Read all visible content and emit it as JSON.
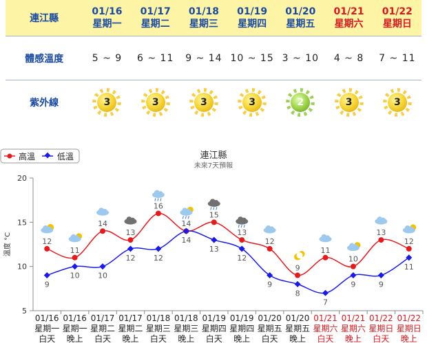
{
  "location_label": "連江縣",
  "feel_label": "體感溫度",
  "uv_label": "紫外線",
  "days": [
    {
      "date": "01/16",
      "weekday": "星期一",
      "feel": "5 ~ 9",
      "uv": "3",
      "weekend": false
    },
    {
      "date": "01/17",
      "weekday": "星期二",
      "feel": "6 ~ 11",
      "uv": "3",
      "weekend": false
    },
    {
      "date": "01/18",
      "weekday": "星期三",
      "feel": "9 ~ 14",
      "uv": "3",
      "weekend": false
    },
    {
      "date": "01/19",
      "weekday": "星期四",
      "feel": "10 ~ 15",
      "uv": "3",
      "weekend": false
    },
    {
      "date": "01/20",
      "weekday": "星期五",
      "feel": "3 ~ 10",
      "uv": "2",
      "weekend": false
    },
    {
      "date": "01/21",
      "weekday": "星期六",
      "feel": "4 ~ 8",
      "uv": "3",
      "weekend": true
    },
    {
      "date": "01/22",
      "weekday": "星期日",
      "feel": "7 ~ 11",
      "uv": "3",
      "weekend": true
    }
  ],
  "colors": {
    "high": "#e41a1c",
    "low": "#1a1ae6",
    "weekend": "#d8181e",
    "header_bg": "#fdf4a6"
  },
  "chart_data": {
    "type": "line",
    "title": "連江縣",
    "subtitle": "未來7天預報",
    "ylabel": "溫度 °C",
    "ylim": [
      5,
      20
    ],
    "yticks": [
      5,
      10,
      15,
      20
    ],
    "legend": "top-left",
    "grid": false,
    "categories": [
      {
        "date": "01/16",
        "weekday": "星期一",
        "period": "白天",
        "weekend": false,
        "icon": "cloudy-sun-icon"
      },
      {
        "date": "01/16",
        "weekday": "星期一",
        "period": "晚上",
        "weekend": false,
        "icon": "cloudy-moon-icon"
      },
      {
        "date": "01/17",
        "weekday": "星期二",
        "period": "白天",
        "weekend": false,
        "icon": "cloud-icon"
      },
      {
        "date": "01/17",
        "weekday": "星期二",
        "period": "晚上",
        "weekend": false,
        "icon": "dark-cloud-icon"
      },
      {
        "date": "01/18",
        "weekday": "星期三",
        "period": "白天",
        "weekend": false,
        "icon": "rain-cloud-icon"
      },
      {
        "date": "01/18",
        "weekday": "星期三",
        "period": "晚上",
        "weekend": false,
        "icon": "rain-cloud-moon-icon"
      },
      {
        "date": "01/19",
        "weekday": "星期四",
        "period": "白天",
        "weekend": false,
        "icon": "dark-rain-cloud-icon"
      },
      {
        "date": "01/19",
        "weekday": "星期四",
        "period": "晚上",
        "weekend": false,
        "icon": "dark-rain-cloud-icon"
      },
      {
        "date": "01/20",
        "weekday": "星期五",
        "period": "白天",
        "weekend": false,
        "icon": "cloud-icon"
      },
      {
        "date": "01/20",
        "weekday": "星期五",
        "period": "晚上",
        "weekend": false,
        "icon": "moon-icon"
      },
      {
        "date": "01/21",
        "weekday": "星期六",
        "period": "白天",
        "weekend": true,
        "icon": "cloud-icon"
      },
      {
        "date": "01/21",
        "weekday": "星期六",
        "period": "晚上",
        "weekend": true,
        "icon": "cloudy-moon-icon"
      },
      {
        "date": "01/22",
        "weekday": "星期日",
        "period": "白天",
        "weekend": true,
        "icon": "cloud-icon"
      },
      {
        "date": "01/22",
        "weekday": "星期日",
        "period": "晚上",
        "weekend": true,
        "icon": "cloudy-moon-icon"
      }
    ],
    "series": [
      {
        "name": "高溫",
        "values": [
          12,
          11,
          14,
          13,
          16,
          14,
          15,
          13,
          12,
          9,
          11,
          10,
          13,
          12
        ]
      },
      {
        "name": "低溫",
        "values": [
          9,
          10,
          10,
          12,
          12,
          14,
          13,
          12,
          9,
          8,
          7,
          9,
          9,
          11
        ]
      }
    ]
  }
}
